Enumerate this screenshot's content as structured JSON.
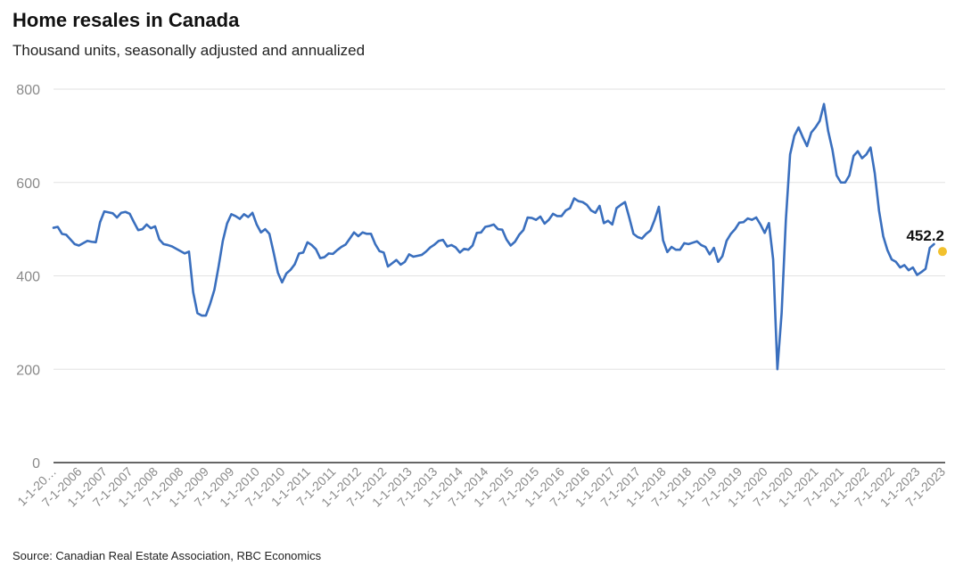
{
  "title": "Home resales in Canada",
  "subtitle": "Thousand units, seasonally adjusted and annualized",
  "source": "Source: Canadian Real Estate Association, RBC Economics",
  "colors": {
    "line": "#3a6fbe",
    "last_point": "#f2c12e",
    "grid": "#e2e2e2",
    "axis": "#333333"
  },
  "chart_data": {
    "type": "line",
    "title": "Home resales in Canada",
    "subtitle": "Thousand units, seasonally adjusted and annualized",
    "ylim": [
      0,
      800
    ],
    "y_ticks": [
      0,
      200,
      400,
      600,
      800
    ],
    "grid": true,
    "x_tick_labels": [
      "1-1-20…",
      "7-1-2006",
      "1-1-2007",
      "7-1-2007",
      "1-1-2008",
      "7-1-2008",
      "1-1-2009",
      "7-1-2009",
      "1-1-2010",
      "7-1-2010",
      "1-1-2011",
      "7-1-2011",
      "1-1-2012",
      "7-1-2012",
      "1-1-2013",
      "7-1-2013",
      "1-1-2014",
      "7-1-2014",
      "1-1-2015",
      "7-1-2015",
      "1-1-2016",
      "7-1-2016",
      "1-1-2017",
      "7-1-2017",
      "1-1-2018",
      "7-1-2018",
      "1-1-2019",
      "7-1-2019",
      "1-1-2020",
      "7-1-2020",
      "1-1-2021",
      "7-1-2021",
      "1-1-2022",
      "7-1-2022",
      "1-1-2023",
      "7-1-2023"
    ],
    "last_point_label": "452.2",
    "series": [
      {
        "start": "2006-01",
        "frequency": "monthly",
        "values": [
          503,
          505,
          490,
          488,
          478,
          468,
          465,
          470,
          475,
          473,
          472,
          515,
          538,
          536,
          534,
          525,
          535,
          537,
          533,
          515,
          498,
          500,
          510,
          502,
          506,
          478,
          468,
          466,
          463,
          458,
          453,
          448,
          452,
          365,
          320,
          315,
          315,
          340,
          370,
          420,
          475,
          512,
          532,
          528,
          522,
          532,
          526,
          535,
          510,
          493,
          500,
          490,
          450,
          407,
          386,
          405,
          413,
          425,
          448,
          450,
          472,
          466,
          457,
          438,
          440,
          448,
          447,
          455,
          462,
          467,
          480,
          493,
          485,
          493,
          490,
          490,
          468,
          453,
          450,
          420,
          427,
          434,
          424,
          430,
          446,
          441,
          443,
          445,
          452,
          461,
          467,
          475,
          477,
          463,
          466,
          461,
          450,
          458,
          456,
          465,
          492,
          493,
          505,
          507,
          510,
          500,
          499,
          478,
          465,
          473,
          488,
          498,
          525,
          524,
          520,
          527,
          512,
          520,
          533,
          528,
          528,
          540,
          545,
          566,
          560,
          558,
          552,
          540,
          535,
          550,
          513,
          518,
          510,
          545,
          552,
          558,
          525,
          490,
          483,
          480,
          490,
          497,
          520,
          548,
          476,
          451,
          462,
          456,
          456,
          470,
          468,
          471,
          474,
          466,
          462,
          446,
          460,
          430,
          442,
          475,
          490,
          500,
          514,
          515,
          523,
          520,
          525,
          510,
          492,
          513,
          435,
          200,
          320,
          520,
          660,
          700,
          718,
          697,
          678,
          707,
          718,
          732,
          768,
          710,
          670,
          615,
          600,
          600,
          615,
          657,
          667,
          652,
          660,
          675,
          620,
          540,
          485,
          455,
          435,
          430,
          418,
          423,
          412,
          418,
          402,
          408,
          415,
          460,
          468
        ]
      }
    ],
    "last_point": {
      "date": "2023-07",
      "value": 452.2
    }
  }
}
